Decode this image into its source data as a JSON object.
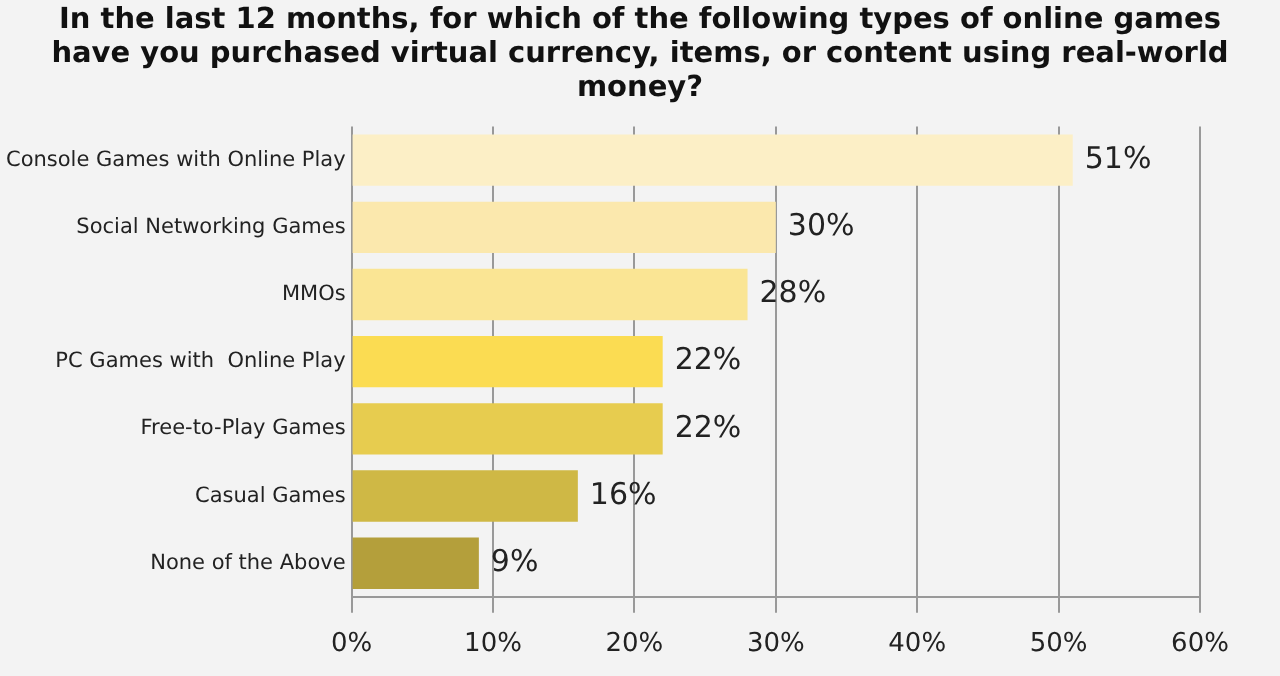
{
  "chart_data": {
    "type": "bar",
    "orientation": "horizontal",
    "title": "In the last 12 months, for which of the following types of online games have you purchased virtual currency, items, or content using real-world money?",
    "categories": [
      "Console Games with Online Play",
      "Social Networking Games",
      "MMOs",
      "PC Games with  Online Play",
      "Free-to-Play Games",
      "Casual Games",
      "None of the Above"
    ],
    "values": [
      51,
      30,
      28,
      22,
      22,
      16,
      9
    ],
    "colors": [
      "#fcefc6",
      "#fbe8ad",
      "#fae594",
      "#fbdc52",
      "#e7cc4f",
      "#cfb845",
      "#b49f3b"
    ],
    "value_labels": [
      "51%",
      "30%",
      "28%",
      "22%",
      "22%",
      "16%",
      "9%"
    ],
    "xlim": [
      0,
      60
    ],
    "xticks": [
      {
        "value": 0,
        "label": "0%"
      },
      {
        "value": 10,
        "label": "10%"
      },
      {
        "value": 20,
        "label": "20%"
      },
      {
        "value": 30,
        "label": "30%"
      },
      {
        "value": 40,
        "label": "40%"
      },
      {
        "value": 50,
        "label": "50%"
      },
      {
        "value": 60,
        "label": "60%"
      }
    ],
    "grid": "x",
    "legend": false
  }
}
